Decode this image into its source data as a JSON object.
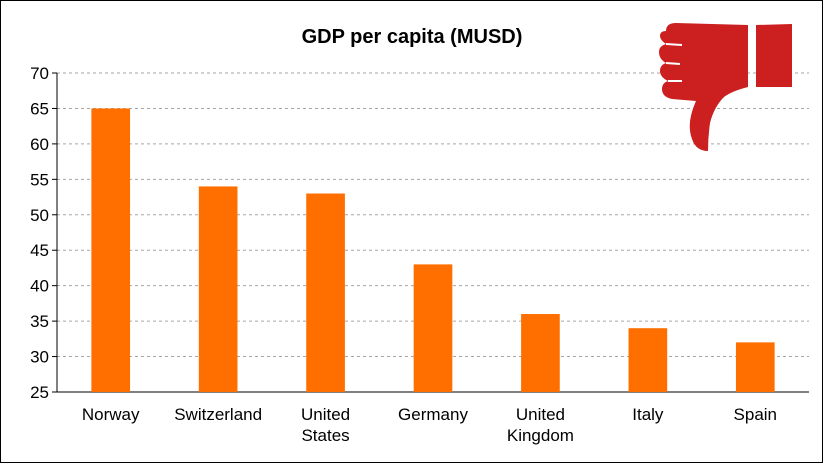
{
  "chart_data": {
    "type": "bar",
    "title": "GDP per capita (MUSD)",
    "xlabel": "",
    "ylabel": "",
    "categories": [
      [
        "Norway"
      ],
      [
        "Switzerland"
      ],
      [
        "United",
        "States"
      ],
      [
        "Germany"
      ],
      [
        "United",
        "Kingdom"
      ],
      [
        "Italy"
      ],
      [
        "Spain"
      ]
    ],
    "values": [
      65,
      54,
      53,
      43,
      36,
      34,
      32
    ],
    "ylim": [
      25,
      70
    ],
    "yticks": [
      25,
      30,
      35,
      40,
      45,
      50,
      55,
      60,
      65,
      70
    ],
    "grid": "horizontal dashed",
    "legend": "none",
    "bar_color": "#ff6f00"
  },
  "decoration": {
    "icon": "thumbs-down-icon",
    "icon_color": "#cc1f1f"
  }
}
